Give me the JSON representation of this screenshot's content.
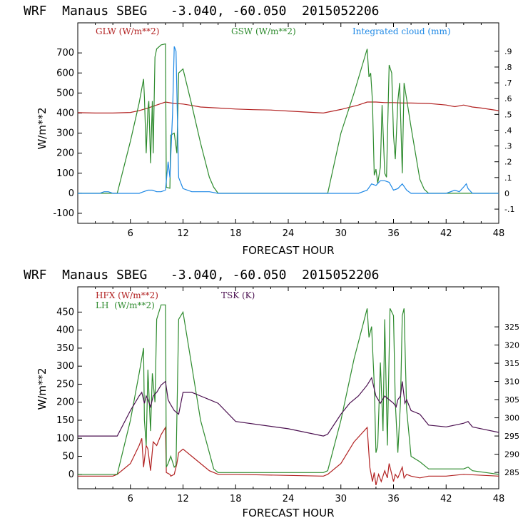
{
  "charts": [
    {
      "id": "top",
      "title": "WRF  Manaus SBEG   -3.040, -60.050  2015052206",
      "type": "line",
      "xlabel": "FORECAST HOUR",
      "ylabel": "W/m**2",
      "xlim": [
        0,
        48
      ],
      "ylim": [
        -150,
        850
      ],
      "y2lim": [
        -0.19,
        1.08
      ],
      "x_ticks": [
        6,
        12,
        18,
        24,
        30,
        36,
        42,
        48
      ],
      "y_ticks": [
        -100,
        0,
        100,
        200,
        300,
        400,
        500,
        600,
        700
      ],
      "y2_ticks": [
        "-.1",
        "0",
        ".1",
        ".2",
        ".3",
        ".4",
        ".5",
        ".6",
        ".7",
        ".8",
        ".9"
      ],
      "y2_tick_values": [
        -0.1,
        0,
        0.1,
        0.2,
        0.3,
        0.4,
        0.5,
        0.6,
        0.7,
        0.8,
        0.9
      ],
      "legend": [
        {
          "label": "GLW (W/m**2)",
          "color": "#b22222"
        },
        {
          "label": "GSW (W/m**2)",
          "color": "#2e8b2e"
        },
        {
          "label": "Integrated cloud (mm)",
          "color": "#1e88e5"
        }
      ],
      "series": [
        {
          "name": "GLW",
          "color": "#b22222",
          "axis": "left",
          "x": [
            0,
            2,
            4,
            6,
            7,
            8,
            9,
            10,
            11,
            12,
            13,
            14,
            16,
            18,
            20,
            22,
            24,
            26,
            28,
            30,
            32,
            33,
            34,
            35,
            36,
            37,
            38,
            40,
            42,
            43,
            44,
            45,
            46,
            48
          ],
          "y": [
            402,
            400,
            400,
            403,
            412,
            425,
            440,
            455,
            448,
            445,
            438,
            430,
            425,
            420,
            417,
            415,
            410,
            405,
            400,
            418,
            440,
            455,
            455,
            452,
            452,
            450,
            450,
            448,
            440,
            432,
            440,
            430,
            425,
            412
          ]
        },
        {
          "name": "GSW",
          "color": "#2e8b2e",
          "axis": "left",
          "x": [
            0,
            4,
            4.5,
            6,
            7,
            7.5,
            7.6,
            7.8,
            8,
            8.1,
            8.3,
            8.5,
            8.6,
            8.8,
            9,
            9.5,
            10,
            10.1,
            10.5,
            10.6,
            11,
            11.3,
            11.5,
            12,
            13,
            14,
            15,
            15.5,
            16,
            28,
            28.5,
            30,
            31.5,
            33,
            33.2,
            33.4,
            33.6,
            33.8,
            34,
            34.2,
            34.5,
            34.7,
            35,
            35.2,
            35.5,
            35.8,
            36,
            36.2,
            36.5,
            36.7,
            37,
            37.2,
            37.5,
            38,
            39,
            39.5,
            40,
            48
          ],
          "y": [
            0,
            0,
            0,
            260,
            450,
            570,
            480,
            200,
            420,
            460,
            150,
            460,
            200,
            680,
            720,
            740,
            745,
            30,
            25,
            290,
            300,
            200,
            600,
            620,
            440,
            250,
            80,
            30,
            0,
            0,
            0,
            300,
            500,
            720,
            580,
            600,
            460,
            90,
            120,
            50,
            130,
            440,
            100,
            80,
            640,
            600,
            290,
            170,
            460,
            550,
            100,
            550,
            470,
            330,
            70,
            20,
            0,
            0
          ]
        },
        {
          "name": "Integrated cloud",
          "color": "#1e88e5",
          "axis": "right",
          "x": [
            0,
            2.5,
            3,
            3.5,
            4,
            7,
            7.5,
            8,
            8.5,
            9,
            9.5,
            10,
            10.3,
            10.5,
            10.8,
            11,
            11.2,
            11.5,
            12,
            13,
            14,
            15,
            16,
            28,
            32,
            33,
            33.5,
            34,
            34.5,
            35,
            35.5,
            36,
            36.5,
            37,
            37.5,
            38,
            42,
            43,
            43.5,
            44,
            44.3,
            44.5,
            45,
            48
          ],
          "y": [
            0,
            0,
            0.01,
            0.01,
            0,
            0,
            0.01,
            0.02,
            0.02,
            0.01,
            0.01,
            0.02,
            0.2,
            0.1,
            0.5,
            0.93,
            0.9,
            0.1,
            0.03,
            0.01,
            0.01,
            0.01,
            0,
            0,
            0,
            0.02,
            0.06,
            0.05,
            0.08,
            0.08,
            0.07,
            0.02,
            0.03,
            0.06,
            0.02,
            0,
            0,
            0.02,
            0.01,
            0.04,
            0.06,
            0.03,
            0,
            0
          ]
        }
      ]
    },
    {
      "id": "bottom",
      "title": "WRF  Manaus SBEG   -3.040, -60.050  2015052206",
      "type": "line",
      "xlabel": "FORECAST HOUR",
      "ylabel": "W/m**2",
      "xlim": [
        0,
        48
      ],
      "ylim": [
        -40,
        520
      ],
      "y2lim": [
        280.5,
        336
      ],
      "x_ticks": [
        6,
        12,
        18,
        24,
        30,
        36,
        42,
        48
      ],
      "y_ticks": [
        0,
        50,
        100,
        150,
        200,
        250,
        300,
        350,
        400,
        450
      ],
      "y2_ticks": [
        "285",
        "290",
        "295",
        "300",
        "305",
        "310",
        "315",
        "320",
        "325"
      ],
      "y2_tick_values": [
        285,
        290,
        295,
        300,
        305,
        310,
        315,
        320,
        325
      ],
      "legend": [
        {
          "label": "HFX (W/m**2)",
          "color": "#b22222"
        },
        {
          "label": "LH  (W/m**2)",
          "color": "#2e8b2e"
        },
        {
          "label": "TSK (K)",
          "color": "#4b1050"
        }
      ],
      "series": [
        {
          "name": "HFX",
          "color": "#b22222",
          "axis": "left",
          "x": [
            0,
            4,
            4.5,
            6,
            7,
            7.3,
            7.5,
            7.8,
            8,
            8.3,
            8.6,
            9,
            9.5,
            10,
            10.1,
            10.5,
            10.6,
            11,
            11.3,
            11.5,
            12,
            13,
            14,
            15,
            16,
            18,
            28,
            28.5,
            30,
            31.5,
            33,
            33.3,
            33.6,
            33.8,
            34,
            34.3,
            34.6,
            35,
            35.3,
            35.5,
            36,
            36.2,
            36.5,
            37,
            37.2,
            37.5,
            38,
            39,
            40,
            42,
            44,
            48
          ],
          "y": [
            -5,
            -5,
            0,
            30,
            80,
            100,
            20,
            80,
            70,
            10,
            90,
            80,
            110,
            130,
            5,
            0,
            -5,
            0,
            30,
            60,
            70,
            50,
            30,
            10,
            0,
            0,
            -5,
            0,
            30,
            90,
            130,
            20,
            -20,
            5,
            -30,
            0,
            -20,
            10,
            -10,
            30,
            -20,
            0,
            -10,
            20,
            -10,
            0,
            -5,
            -10,
            -5,
            -5,
            0,
            -5
          ]
        },
        {
          "name": "LH",
          "color": "#2e8b2e",
          "axis": "left",
          "x": [
            0,
            4,
            4.5,
            6,
            7,
            7.5,
            7.6,
            7.8,
            8,
            8.3,
            8.5,
            8.8,
            9,
            9.5,
            10,
            10.1,
            10.3,
            10.6,
            11,
            11.2,
            11.5,
            12,
            13,
            14,
            15,
            15.5,
            16,
            28,
            28.5,
            30,
            31.5,
            33,
            33.2,
            33.5,
            33.8,
            34,
            34.2,
            34.5,
            34.8,
            35,
            35.3,
            35.6,
            36,
            36.2,
            36.5,
            36.8,
            37,
            37.2,
            37.5,
            38,
            39,
            40,
            44,
            44.5,
            45,
            48
          ],
          "y": [
            0,
            0,
            0,
            150,
            280,
            350,
            150,
            80,
            290,
            120,
            280,
            200,
            430,
            470,
            470,
            20,
            30,
            50,
            20,
            25,
            430,
            450,
            300,
            150,
            60,
            15,
            5,
            5,
            10,
            150,
            320,
            460,
            380,
            410,
            250,
            60,
            80,
            310,
            120,
            430,
            80,
            460,
            440,
            200,
            60,
            200,
            440,
            460,
            180,
            50,
            35,
            15,
            15,
            20,
            10,
            0
          ]
        },
        {
          "name": "TSK",
          "color": "#4b1050",
          "axis": "right",
          "x": [
            0,
            4,
            4.5,
            6,
            7,
            7.3,
            7.6,
            7.8,
            8,
            8.3,
            8.6,
            9,
            9.5,
            10,
            10.3,
            10.5,
            11,
            11.5,
            12,
            13,
            14,
            15,
            16,
            18,
            24,
            28,
            28.5,
            30,
            31,
            32,
            33,
            33.5,
            34,
            34.5,
            35,
            35.5,
            36,
            36.3,
            36.5,
            36.8,
            37,
            37.3,
            37.5,
            38,
            39,
            40,
            42,
            43,
            44,
            44.5,
            45,
            46,
            48
          ],
          "y": [
            295,
            295,
            295,
            302,
            306,
            307,
            304,
            306,
            305,
            303,
            306,
            307,
            309,
            310,
            305,
            304,
            302,
            301,
            307,
            307,
            306,
            305,
            304,
            299,
            297,
            295,
            295.5,
            301,
            304,
            306,
            309,
            311,
            306,
            304,
            306,
            305,
            304,
            303,
            305,
            306,
            310,
            304,
            305,
            302,
            301,
            298,
            297.5,
            298,
            298.5,
            299,
            297.5,
            297,
            296
          ]
        }
      ]
    }
  ]
}
